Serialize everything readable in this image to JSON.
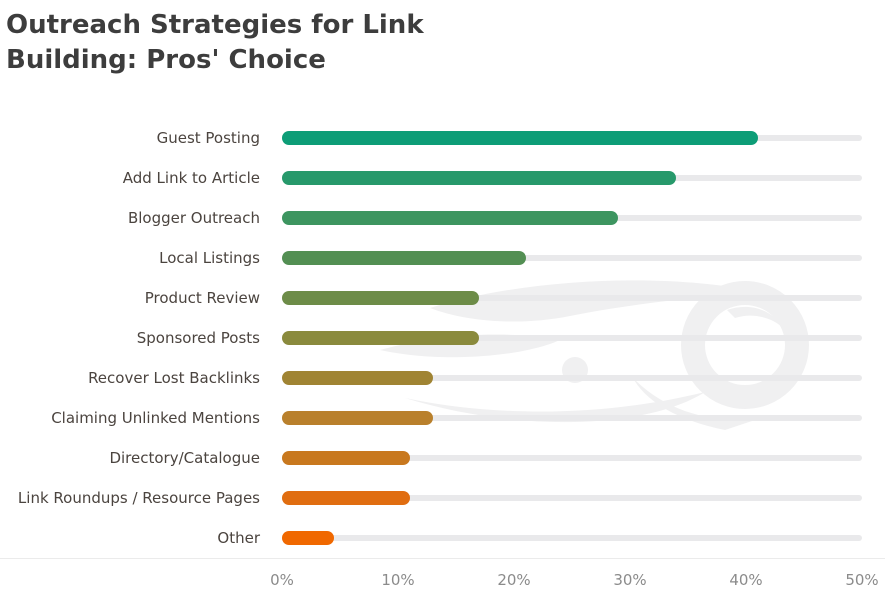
{
  "title": {
    "line1": "Outreach Strategies for Link",
    "line2": "Building: Pros' Choice"
  },
  "watermark": {
    "icon": "semrush-logo",
    "color": "#f0f0f1"
  },
  "chart_data": {
    "type": "bar",
    "orientation": "horizontal",
    "title": "Outreach Strategies for Link Building: Pros' Choice",
    "categories": [
      "Guest Posting",
      "Add Link to Article",
      "Blogger Outreach",
      "Local Listings",
      "Product Review",
      "Sponsored Posts",
      "Recover Lost Backlinks",
      "Claiming Unlinked Mentions",
      "Directory/Catalogue",
      "Link Roundups / Resource Pages",
      "Other"
    ],
    "values": [
      41,
      34,
      29,
      21,
      17,
      17,
      13,
      13,
      11,
      11,
      4.5
    ],
    "unit": "%",
    "bar_colors": [
      "#0d9d77",
      "#27996b",
      "#3d9560",
      "#538f53",
      "#6d8c48",
      "#8a8a3d",
      "#a08433",
      "#b9802c",
      "#c8781e",
      "#e06d10",
      "#f06800"
    ],
    "track_color": "#e9e9eb",
    "xlim": [
      0,
      50
    ],
    "x_ticks": [
      "0%",
      "10%",
      "20%",
      "30%",
      "40%",
      "50%"
    ],
    "xlabel": "",
    "ylabel": "",
    "grid": false,
    "legend": false
  }
}
